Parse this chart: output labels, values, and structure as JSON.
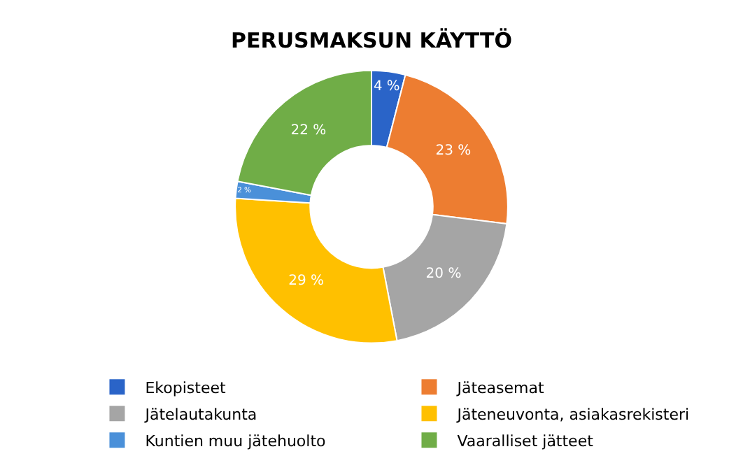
{
  "chart_data": {
    "type": "donut",
    "title": "PERUSMAKSUN KÄYTTÖ",
    "categories": [
      "Ekopisteet",
      "Jäteasemat",
      "Jätelautakunta",
      "Jäteneuvonta, asiakasrekisteri",
      "Kuntien muu jätehuolto",
      "Vaaralliset jätteet"
    ],
    "values": [
      4,
      23,
      20,
      29,
      2,
      22
    ],
    "value_labels": [
      "4 %",
      "23 %",
      "20 %",
      "29 %",
      "2 %",
      "22 %"
    ],
    "colors": [
      "#2a64c8",
      "#ed7d31",
      "#a5a5a5",
      "#ffc000",
      "#4a90d9",
      "#70ad47"
    ],
    "legend": "bottom"
  }
}
